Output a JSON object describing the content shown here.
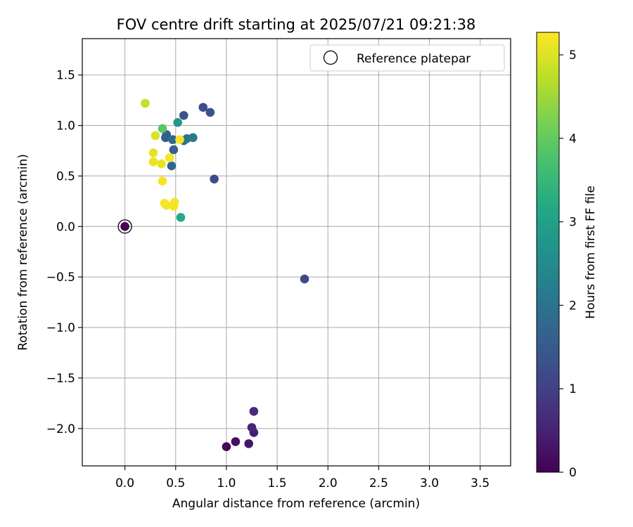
{
  "chart_data": {
    "type": "scatter",
    "title": "FOV centre drift starting at 2025/07/21 09:21:38",
    "xlabel": "Angular distance from reference (arcmin)",
    "ylabel": "Rotation from reference (arcmin)",
    "xlim": [
      -0.42,
      3.8
    ],
    "ylim": [
      -2.37,
      1.86
    ],
    "xticks": [
      0.0,
      0.5,
      1.0,
      1.5,
      2.0,
      2.5,
      3.0,
      3.5
    ],
    "xtick_labels": [
      "0.0",
      "0.5",
      "1.0",
      "1.5",
      "2.0",
      "2.5",
      "3.0",
      "3.5"
    ],
    "yticks": [
      -2.0,
      -1.5,
      -1.0,
      -0.5,
      0.0,
      0.5,
      1.0,
      1.5
    ],
    "ytick_labels": [
      "−2.0",
      "−1.5",
      "−1.0",
      "−0.5",
      "0.0",
      "0.5",
      "1.0",
      "1.5"
    ],
    "grid": true,
    "legend": {
      "position": "top-right",
      "entries": [
        "Reference platepar"
      ]
    },
    "reference_point": {
      "x": 0.0,
      "y": 0.0
    },
    "colorbar": {
      "label": "Hours from first FF file",
      "colormap": "viridis",
      "range": [
        0,
        5.27
      ],
      "ticks": [
        0,
        1,
        2,
        3,
        4,
        5
      ],
      "tick_labels": [
        "0",
        "1",
        "2",
        "3",
        "4",
        "5"
      ]
    },
    "points": [
      {
        "x": 0.0,
        "y": 0.0,
        "hours": 0.0
      },
      {
        "x": 1.0,
        "y": -2.18,
        "hours": 0.1
      },
      {
        "x": 1.09,
        "y": -2.13,
        "hours": 0.2
      },
      {
        "x": 1.22,
        "y": -2.15,
        "hours": 0.3
      },
      {
        "x": 1.27,
        "y": -2.04,
        "hours": 0.45
      },
      {
        "x": 1.25,
        "y": -1.99,
        "hours": 0.55
      },
      {
        "x": 1.27,
        "y": -1.83,
        "hours": 0.65
      },
      {
        "x": 1.77,
        "y": -0.52,
        "hours": 1.15
      },
      {
        "x": 0.88,
        "y": 0.47,
        "hours": 1.2
      },
      {
        "x": 0.77,
        "y": 1.18,
        "hours": 1.25
      },
      {
        "x": 0.84,
        "y": 1.13,
        "hours": 1.3
      },
      {
        "x": 0.58,
        "y": 1.1,
        "hours": 1.35
      },
      {
        "x": 0.4,
        "y": 0.88,
        "hours": 1.5
      },
      {
        "x": 0.41,
        "y": 0.91,
        "hours": 1.55
      },
      {
        "x": 0.48,
        "y": 0.76,
        "hours": 1.6
      },
      {
        "x": 0.46,
        "y": 0.6,
        "hours": 1.7
      },
      {
        "x": 0.47,
        "y": 0.86,
        "hours": 1.8
      },
      {
        "x": 0.58,
        "y": 0.85,
        "hours": 1.9
      },
      {
        "x": 0.61,
        "y": 0.87,
        "hours": 2.0
      },
      {
        "x": 0.67,
        "y": 0.88,
        "hours": 2.2
      },
      {
        "x": 0.52,
        "y": 1.03,
        "hours": 2.8
      },
      {
        "x": 0.55,
        "y": 0.09,
        "hours": 3.2
      },
      {
        "x": 0.37,
        "y": 0.97,
        "hours": 3.9
      },
      {
        "x": 0.2,
        "y": 1.22,
        "hours": 4.8
      },
      {
        "x": 0.3,
        "y": 0.9,
        "hours": 5.0
      },
      {
        "x": 0.28,
        "y": 0.73,
        "hours": 5.1
      },
      {
        "x": 0.28,
        "y": 0.64,
        "hours": 5.1
      },
      {
        "x": 0.36,
        "y": 0.62,
        "hours": 5.1
      },
      {
        "x": 0.44,
        "y": 0.68,
        "hours": 5.2
      },
      {
        "x": 0.54,
        "y": 0.86,
        "hours": 5.2
      },
      {
        "x": 0.37,
        "y": 0.45,
        "hours": 5.2
      },
      {
        "x": 0.39,
        "y": 0.23,
        "hours": 5.2
      },
      {
        "x": 0.41,
        "y": 0.21,
        "hours": 5.2
      },
      {
        "x": 0.48,
        "y": 0.2,
        "hours": 5.2
      },
      {
        "x": 0.49,
        "y": 0.24,
        "hours": 5.2
      }
    ]
  }
}
